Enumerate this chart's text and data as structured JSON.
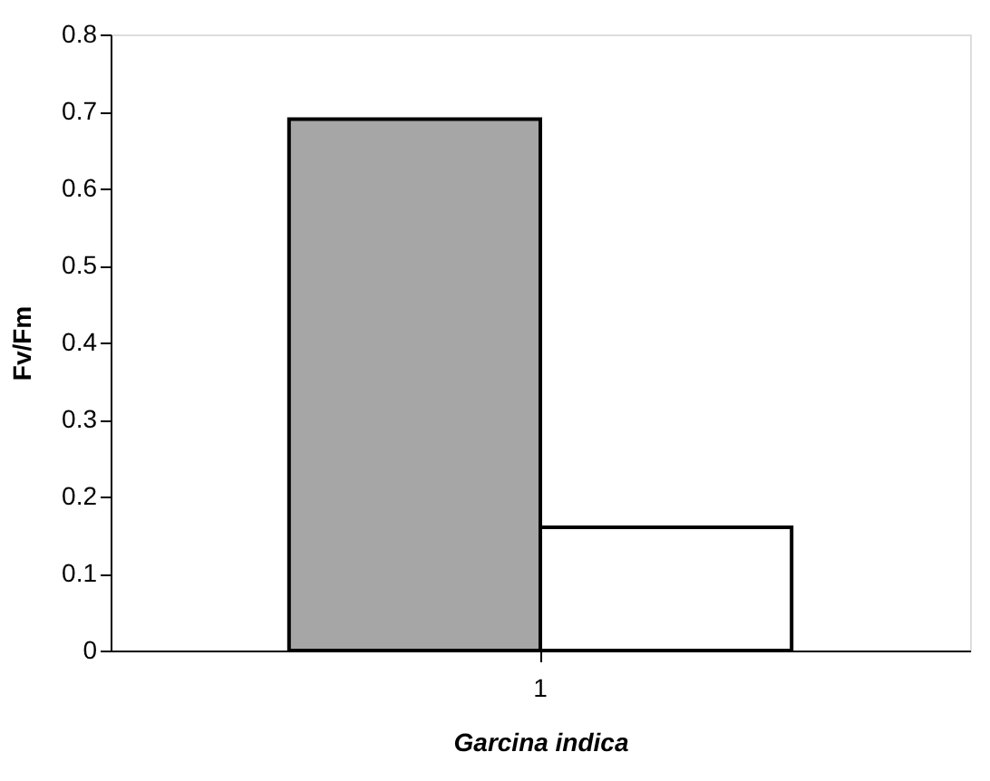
{
  "chart_data": {
    "type": "bar",
    "xlabel": "Garcina indica",
    "ylabel": "Fv/Fm",
    "categories": [
      "1"
    ],
    "series": [
      {
        "color": "#a6a6a6",
        "values": [
          0.69
        ]
      },
      {
        "color": "#ffffff",
        "values": [
          0.16
        ]
      }
    ],
    "ylim": [
      0,
      0.8
    ],
    "yticks": [
      0,
      0.1,
      0.2,
      0.3,
      0.4,
      0.5,
      0.6,
      0.7,
      0.8
    ],
    "grid": false
  }
}
